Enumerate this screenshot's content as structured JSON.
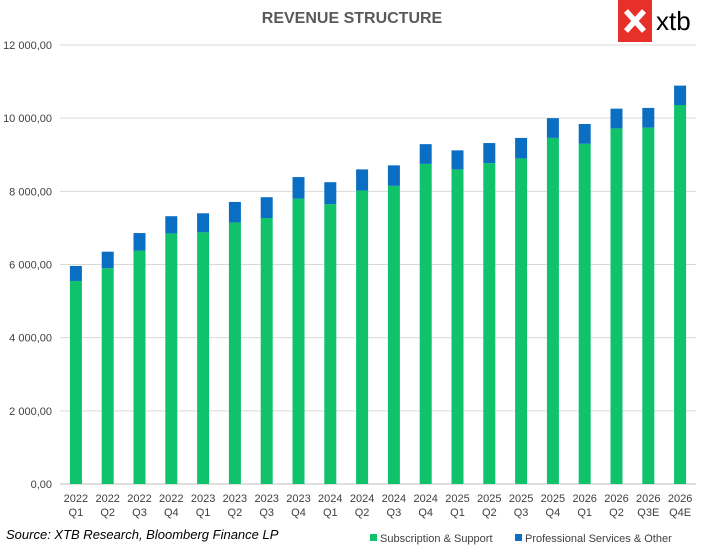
{
  "chart_data": {
    "type": "bar",
    "stacked": true,
    "title": "REVENUE STRUCTURE",
    "categories": [
      [
        "2022",
        "Q1"
      ],
      [
        "2022",
        "Q2"
      ],
      [
        "2022",
        "Q3"
      ],
      [
        "2022",
        "Q4"
      ],
      [
        "2023",
        "Q1"
      ],
      [
        "2023",
        "Q2"
      ],
      [
        "2023",
        "Q3"
      ],
      [
        "2023",
        "Q4"
      ],
      [
        "2024",
        "Q1"
      ],
      [
        "2024",
        "Q2"
      ],
      [
        "2024",
        "Q3"
      ],
      [
        "2024",
        "Q4"
      ],
      [
        "2025",
        "Q1"
      ],
      [
        "2025",
        "Q2"
      ],
      [
        "2025",
        "Q3"
      ],
      [
        "2025",
        "Q4"
      ],
      [
        "2026",
        "Q1"
      ],
      [
        "2026",
        "Q2"
      ],
      [
        "2026",
        "Q3E"
      ],
      [
        "2026",
        "Q4E"
      ]
    ],
    "series": [
      {
        "name": "Subscription & Support",
        "color": "#10c26a",
        "values": [
          5550,
          5900,
          6380,
          6850,
          6880,
          7150,
          7270,
          7800,
          7650,
          8020,
          8150,
          8750,
          8600,
          8770,
          8900,
          9460,
          9300,
          9720,
          9740,
          10360
        ]
      },
      {
        "name": "Professional Services & Other",
        "color": "#0a6fc2",
        "values": [
          410,
          450,
          480,
          470,
          520,
          560,
          570,
          590,
          600,
          580,
          560,
          540,
          520,
          550,
          560,
          540,
          540,
          540,
          540,
          530
        ]
      }
    ],
    "yticks": [
      "0,00",
      "2 000,00",
      "4 000,00",
      "6 000,00",
      "8 000,00",
      "10 000,00",
      "12 000,00"
    ],
    "ylim": [
      0,
      12000
    ],
    "grid": true,
    "legend_position": "bottom-right",
    "xlabel": "",
    "ylabel": ""
  },
  "source": "Source: XTB Research, Bloomberg Finance LP",
  "logo": {
    "text": "xtb",
    "color": "#e8302b"
  }
}
